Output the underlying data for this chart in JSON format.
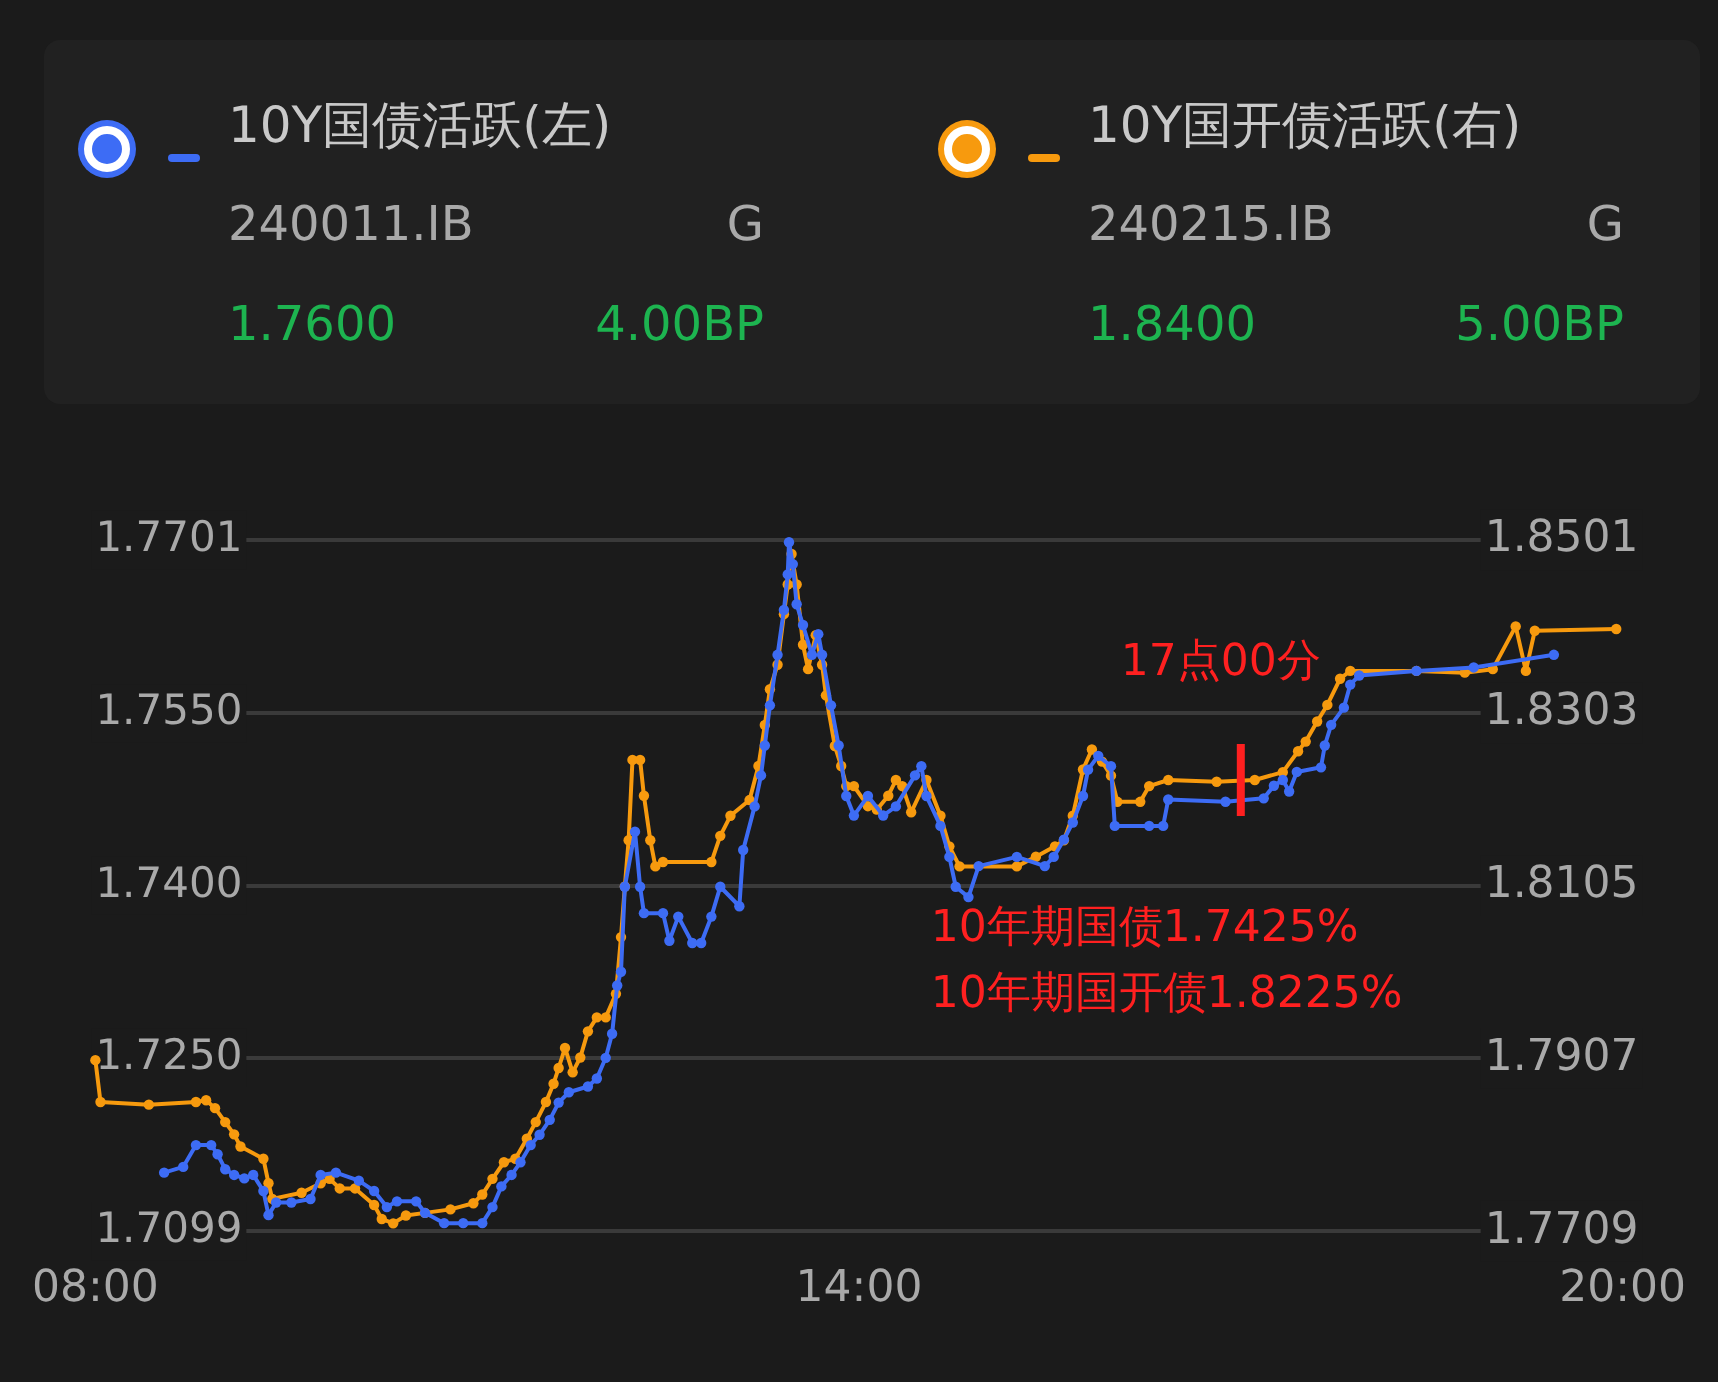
{
  "chart_data": {
    "type": "line",
    "legend": "top",
    "grid": "y",
    "marker": "circle",
    "line_style": "solid",
    "xlim": [
      8,
      20
    ],
    "xticks": [
      {
        "value": 8,
        "label": "08:00"
      },
      {
        "value": 14,
        "label": "14:00"
      },
      {
        "value": 20,
        "label": "20:00"
      }
    ],
    "ylim": [
      1.7099,
      1.7701
    ],
    "yticks": [
      1.7099,
      {
        "value": 1.725,
        "label": "1.7250"
      },
      {
        "value": 1.74,
        "label": "1.7400"
      },
      {
        "value": 1.755,
        "label": "1.7550"
      },
      1.7701
    ],
    "y2lim": [
      1.7709,
      1.8501
    ],
    "y2ticks": [
      1.7709,
      1.7907,
      1.8105,
      1.8303,
      1.8501
    ],
    "ref_lines": [
      {
        "axis": "x",
        "value": 17,
        "label": "17点00分",
        "color": "#ff2020"
      }
    ],
    "annotations": [
      "240011.IB",
      "G",
      "1.7600",
      "4.00BP",
      "240215.IB",
      "G",
      "1.8400",
      "5.00BP",
      "10年期国债1.7425%",
      "10年期国开债1.8225%"
    ],
    "series": [
      {
        "name": "10Y国债活跃(左)",
        "color": "#3d6cf5",
        "axis": "y",
        "x": [
          8.54,
          8.69,
          8.79,
          8.91,
          8.96,
          9.02,
          9.09,
          9.17,
          9.24,
          9.32,
          9.36,
          9.42,
          9.54,
          9.69,
          9.77,
          9.89,
          10.07,
          10.19,
          10.29,
          10.37,
          10.52,
          10.59,
          10.74,
          10.89,
          11.04,
          11.12,
          11.19,
          11.27,
          11.34,
          11.42,
          11.49,
          11.57,
          11.64,
          11.72,
          11.87,
          11.94,
          12.01,
          12.06,
          12.1,
          12.13,
          12.16,
          12.24,
          12.28,
          12.31,
          12.46,
          12.51,
          12.58,
          12.69,
          12.76,
          12.84,
          12.91,
          13.06,
          13.09,
          13.18,
          13.23,
          13.26,
          13.3,
          13.36,
          13.41,
          13.44,
          13.45,
          13.48,
          13.51,
          13.56,
          13.63,
          13.68,
          13.71,
          13.78,
          13.84,
          13.9,
          13.96,
          14.07,
          14.19,
          14.29,
          14.44,
          14.49,
          14.53,
          14.64,
          14.71,
          14.76,
          14.86,
          14.94,
          15.24,
          15.46,
          15.53,
          15.61,
          15.68,
          15.76,
          15.8,
          15.88,
          15.98,
          16.01,
          16.28,
          16.39,
          16.43,
          16.88,
          17.18,
          17.26,
          17.33,
          17.38,
          17.44,
          17.63,
          17.66,
          17.71,
          17.81,
          17.86,
          17.93,
          18.38,
          18.83,
          19.46
        ],
        "values": [
          1.715,
          1.7155,
          1.7174,
          1.7174,
          1.7166,
          1.7153,
          1.7148,
          1.7145,
          1.7148,
          1.7134,
          1.7113,
          1.7124,
          1.7124,
          1.7127,
          1.7148,
          1.715,
          1.7143,
          1.7134,
          1.712,
          1.7125,
          1.7125,
          1.7115,
          1.7106,
          1.7106,
          1.7106,
          1.712,
          1.7138,
          1.7148,
          1.7159,
          1.7174,
          1.7183,
          1.7196,
          1.7211,
          1.722,
          1.7225,
          1.7232,
          1.725,
          1.7271,
          1.7313,
          1.7325,
          1.7399,
          1.7447,
          1.7399,
          1.7376,
          1.7376,
          1.7352,
          1.7373,
          1.735,
          1.735,
          1.7373,
          1.7399,
          1.7382,
          1.7431,
          1.7469,
          1.7496,
          1.7522,
          1.7557,
          1.7601,
          1.764,
          1.7671,
          1.7699,
          1.768,
          1.7645,
          1.7627,
          1.7601,
          1.7619,
          1.7601,
          1.7557,
          1.7522,
          1.7478,
          1.7461,
          1.7478,
          1.7461,
          1.7469,
          1.7496,
          1.7504,
          1.7478,
          1.7452,
          1.7425,
          1.7399,
          1.739,
          1.7417,
          1.7425,
          1.7417,
          1.7425,
          1.744,
          1.7455,
          1.7478,
          1.7501,
          1.7513,
          1.7504,
          1.7452,
          1.7452,
          1.7452,
          1.7475,
          1.7473,
          1.7476,
          1.7487,
          1.7492,
          1.7482,
          1.7499,
          1.7503,
          1.7522,
          1.754,
          1.7555,
          1.7575,
          1.7583,
          1.7587,
          1.759,
          1.7601
        ]
      },
      {
        "name": "10Y国开债活跃(右)",
        "color": "#f79a0e",
        "axis": "y2",
        "x": [
          8,
          8.04,
          8.42,
          8.79,
          8.87,
          8.94,
          9.02,
          9.09,
          9.14,
          9.32,
          9.36,
          9.39,
          9.62,
          9.77,
          9.84,
          9.92,
          10.04,
          10.19,
          10.25,
          10.34,
          10.44,
          10.59,
          10.79,
          10.97,
          11.04,
          11.12,
          11.21,
          11.3,
          11.39,
          11.46,
          11.54,
          11.6,
          11.64,
          11.69,
          11.75,
          11.81,
          11.87,
          11.94,
          12.01,
          12.09,
          12.13,
          12.16,
          12.19,
          12.22,
          12.28,
          12.31,
          12.36,
          12.4,
          12.46,
          12.84,
          12.91,
          12.99,
          13.14,
          13.21,
          13.26,
          13.3,
          13.36,
          13.41,
          13.44,
          13.47,
          13.51,
          13.56,
          13.6,
          13.66,
          13.71,
          13.74,
          13.81,
          13.86,
          13.9,
          13.96,
          14.07,
          14.14,
          14.23,
          14.29,
          14.34,
          14.41,
          14.53,
          14.64,
          14.71,
          14.79,
          15.24,
          15.39,
          15.54,
          15.61,
          15.68,
          15.76,
          15.83,
          15.91,
          15.98,
          16.03,
          16.21,
          16.28,
          16.43,
          16.81,
          17.11,
          17.33,
          17.45,
          17.51,
          17.6,
          17.68,
          17.78,
          17.86,
          18.38,
          18.76,
          18.98,
          19.16,
          19.24,
          19.31,
          19.95
        ],
        "values": [
          1.7905,
          1.7857,
          1.7854,
          1.7857,
          1.7859,
          1.785,
          1.7834,
          1.782,
          1.7806,
          1.7792,
          1.7764,
          1.7746,
          1.7753,
          1.7764,
          1.7769,
          1.7758,
          1.7758,
          1.7739,
          1.7723,
          1.7718,
          1.7727,
          1.773,
          1.7734,
          1.7741,
          1.7751,
          1.7769,
          1.7788,
          1.7792,
          1.7815,
          1.7834,
          1.7857,
          1.7878,
          1.7896,
          1.7919,
          1.7891,
          1.7908,
          1.7938,
          1.7954,
          1.7954,
          1.7981,
          1.8046,
          1.8104,
          1.8157,
          1.8249,
          1.8249,
          1.8208,
          1.8157,
          1.8127,
          1.8132,
          1.8132,
          1.8162,
          1.8185,
          1.8203,
          1.8242,
          1.8289,
          1.833,
          1.8358,
          1.8416,
          1.845,
          1.8485,
          1.845,
          1.8381,
          1.8353,
          1.8392,
          1.8358,
          1.8323,
          1.8265,
          1.8242,
          1.8219,
          1.8219,
          1.8196,
          1.8192,
          1.8208,
          1.8226,
          1.8219,
          1.8189,
          1.8226,
          1.8185,
          1.815,
          1.8127,
          1.8127,
          1.8138,
          1.815,
          1.8157,
          1.8185,
          1.8238,
          1.8261,
          1.8247,
          1.8231,
          1.8201,
          1.8201,
          1.8219,
          1.8226,
          1.8224,
          1.8226,
          1.8235,
          1.8259,
          1.827,
          1.8293,
          1.8312,
          1.8342,
          1.8351,
          1.8351,
          1.8349,
          1.8353,
          1.8402,
          1.8351,
          1.8397,
          1.8399
        ]
      }
    ]
  }
}
